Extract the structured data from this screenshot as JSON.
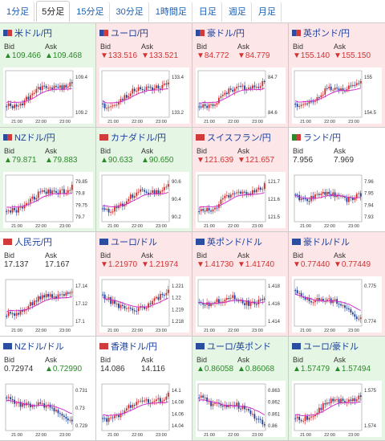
{
  "tabs": [
    "1分足",
    "5分足",
    "15分足",
    "30分足",
    "1時間足",
    "日足",
    "週足",
    "月足"
  ],
  "active_tab": 1,
  "colors": {
    "up": "#2a8a2a",
    "down": "#d23232",
    "candle_up": "#d22b2b",
    "candle_down": "#1c3f9e",
    "ma": "#d020c8"
  },
  "x_ticks": [
    "21:00",
    "22:00",
    "23:00"
  ],
  "panels": [
    {
      "name": "米ドル/円",
      "flag": [
        "#2b4ea0",
        "#d23b3b"
      ],
      "trend": "up",
      "bid_label": "Bid",
      "ask_label": "Ask",
      "bid": "▲109.466",
      "ask": "▲109.468",
      "y_ticks": [
        "109.4",
        "109.2"
      ],
      "shape": "rise"
    },
    {
      "name": "ユーロ/円",
      "flag": [
        "#2b4ea0",
        "#d23b3b"
      ],
      "trend": "down",
      "bid_label": "Bid",
      "ask_label": "Ask",
      "bid": "▼133.516",
      "ask": "▼133.521",
      "y_ticks": [
        "133.4",
        "133.2"
      ],
      "shape": "rise"
    },
    {
      "name": "豪ドル/円",
      "flag": [
        "#2b4ea0",
        "#d23b3b"
      ],
      "trend": "down",
      "bid_label": "Bid",
      "ask_label": "Ask",
      "bid": "▼84.772",
      "ask": "▼84.779",
      "y_ticks": [
        "84.7",
        "84.6"
      ],
      "shape": "rise"
    },
    {
      "name": "英ポンド/円",
      "flag": [
        "#2b4ea0",
        "#d23b3b"
      ],
      "trend": "down",
      "bid_label": "Bid",
      "ask_label": "Ask",
      "bid": "▼155.140",
      "ask": "▼155.150",
      "y_ticks": [
        "155",
        "154.5"
      ],
      "shape": "rise"
    },
    {
      "name": "NZドル/円",
      "flag": [
        "#2b4ea0",
        "#d23b3b"
      ],
      "trend": "up",
      "bid_label": "Bid",
      "ask_label": "Ask",
      "bid": "▲79.871",
      "ask": "▲79.883",
      "y_ticks": [
        "79.85",
        "79.8",
        "79.75",
        "79.7"
      ],
      "shape": "rise"
    },
    {
      "name": "カナダドル/円",
      "flag": [
        "#d23b3b",
        "#d23b3b"
      ],
      "trend": "up",
      "bid_label": "Bid",
      "ask_label": "Ask",
      "bid": "▲90.633",
      "ask": "▲90.650",
      "y_ticks": [
        "90.6",
        "90.4",
        "90.2"
      ],
      "shape": "rise"
    },
    {
      "name": "スイスフラン/円",
      "flag": [
        "#d23b3b",
        "#d23b3b"
      ],
      "trend": "down",
      "bid_label": "Bid",
      "ask_label": "Ask",
      "bid": "▼121.639",
      "ask": "▼121.657",
      "y_ticks": [
        "121.7",
        "121.6",
        "121.5"
      ],
      "shape": "rise"
    },
    {
      "name": "ランド/円",
      "flag": [
        "#2a8a2a",
        "#d23b3b"
      ],
      "trend": "flat",
      "bid_label": "Bid",
      "ask_label": "Ask",
      "bid": "7.956",
      "ask": "7.969",
      "y_ticks": [
        "7.96",
        "7.95",
        "7.94",
        "7.93"
      ],
      "shape": "flat"
    },
    {
      "name": "人民元/円",
      "flag": [
        "#d23b3b",
        "#d23b3b"
      ],
      "trend": "flat",
      "bid_label": "Bid",
      "ask_label": "Ask",
      "bid": "17.137",
      "ask": "17.167",
      "y_ticks": [
        "17.14",
        "17.12",
        "17.1"
      ],
      "shape": "rise"
    },
    {
      "name": "ユーロ/ドル",
      "flag": [
        "#2b4ea0",
        "#2b4ea0"
      ],
      "trend": "down",
      "bid_label": "Bid",
      "ask_label": "Ask",
      "bid": "▼1.21970",
      "ask": "▼1.21974",
      "y_ticks": [
        "1.221",
        "1.22",
        "1.219",
        "1.218"
      ],
      "shape": "dip"
    },
    {
      "name": "英ポンド/ドル",
      "flag": [
        "#2b4ea0",
        "#2b4ea0"
      ],
      "trend": "down",
      "bid_label": "Bid",
      "ask_label": "Ask",
      "bid": "▼1.41730",
      "ask": "▼1.41740",
      "y_ticks": [
        "1.418",
        "1.416",
        "1.414"
      ],
      "shape": "flat"
    },
    {
      "name": "豪ドル/ドル",
      "flag": [
        "#2b4ea0",
        "#2b4ea0"
      ],
      "trend": "down",
      "bid_label": "Bid",
      "ask_label": "Ask",
      "bid": "▼0.77440",
      "ask": "▼0.77449",
      "y_ticks": [
        "0.775",
        "0.774"
      ],
      "shape": "fall"
    },
    {
      "name": "NZドル/ドル",
      "flag": [
        "#2b4ea0",
        "#2b4ea0"
      ],
      "trend": "flat",
      "bid_label": "Bid",
      "ask_label": "Ask",
      "bid": "0.72974",
      "ask": "▲0.72990",
      "y_ticks": [
        "0.731",
        "0.73",
        "0.729"
      ],
      "shape": "fall"
    },
    {
      "name": "香港ドル/円",
      "flag": [
        "#d23b3b",
        "#d23b3b"
      ],
      "trend": "flat",
      "bid_label": "Bid",
      "ask_label": "Ask",
      "bid": "14.086",
      "ask": "14.116",
      "y_ticks": [
        "14.1",
        "14.08",
        "14.06",
        "14.04"
      ],
      "shape": "rise"
    },
    {
      "name": "ユーロ/英ポンド",
      "flag": [
        "#2b4ea0",
        "#2b4ea0"
      ],
      "trend": "up",
      "bid_label": "Bid",
      "ask_label": "Ask",
      "bid": "▲0.86058",
      "ask": "▲0.86068",
      "y_ticks": [
        "0.863",
        "0.862",
        "0.861",
        "0.86"
      ],
      "shape": "fall"
    },
    {
      "name": "ユーロ/豪ドル",
      "flag": [
        "#2b4ea0",
        "#2b4ea0"
      ],
      "trend": "up",
      "bid_label": "Bid",
      "ask_label": "Ask",
      "bid": "▲1.57479",
      "ask": "▲1.57494",
      "y_ticks": [
        "1.575",
        "1.574"
      ],
      "shape": "rise"
    }
  ]
}
